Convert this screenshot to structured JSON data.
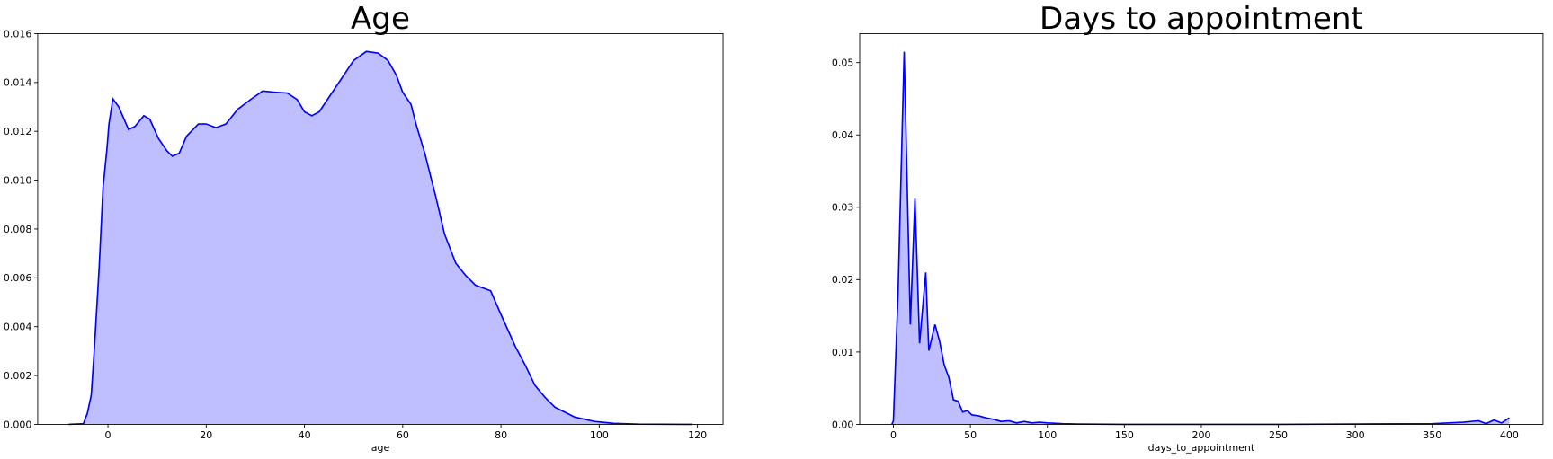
{
  "chart_data": [
    {
      "type": "area",
      "title": "Age",
      "xlabel": "age",
      "color": "#0000ff",
      "fill_opacity": 0.25,
      "x": [
        -8,
        -5,
        -4.2,
        -3.4,
        -2.8,
        -1.8,
        -1,
        -0.2,
        0.2,
        1,
        2.2,
        4.2,
        5.5,
        7.3,
        8.5,
        10.3,
        12,
        13.1,
        14.5,
        16,
        18.4,
        20,
        22,
        24,
        26.4,
        29,
        31.5,
        34,
        36.5,
        38.5,
        40,
        41.5,
        43,
        45,
        48,
        50,
        52.6,
        55,
        57,
        58.7,
        60,
        61.7,
        62.7,
        64.5,
        66.8,
        68.5,
        70.8,
        72.8,
        74.8,
        77.9,
        80,
        82.9,
        85,
        86.9,
        89,
        91,
        95,
        99,
        103,
        108,
        119
      ],
      "values": [
        0,
        3e-05,
        0.00045,
        0.0012,
        0.003,
        0.0064,
        0.0097,
        0.0113,
        0.0123,
        0.01333,
        0.013,
        0.01207,
        0.0122,
        0.01264,
        0.0125,
        0.0117,
        0.0112,
        0.01098,
        0.0111,
        0.0118,
        0.0123,
        0.0123,
        0.01215,
        0.0123,
        0.0129,
        0.0133,
        0.01365,
        0.0136,
        0.01357,
        0.0133,
        0.0128,
        0.01264,
        0.0128,
        0.0134,
        0.0143,
        0.0149,
        0.01527,
        0.0152,
        0.0149,
        0.0143,
        0.0136,
        0.0131,
        0.0123,
        0.0111,
        0.00927,
        0.0078,
        0.0066,
        0.0061,
        0.0057,
        0.00547,
        0.0045,
        0.0032,
        0.0024,
        0.0016,
        0.0011,
        0.0007,
        0.0003,
        0.00012,
        4e-05,
        1e-05,
        0
      ],
      "xlim": [
        -14.3,
        125.2
      ],
      "ylim": [
        0,
        0.016
      ],
      "xticks": [
        0,
        20,
        40,
        60,
        80,
        100,
        120
      ],
      "yticks": [
        {
          "value": 0,
          "label": "0.000"
        },
        {
          "value": 0.002,
          "label": "0.002"
        },
        {
          "value": 0.004,
          "label": "0.004"
        },
        {
          "value": 0.006,
          "label": "0.006"
        },
        {
          "value": 0.008,
          "label": "0.008"
        },
        {
          "value": 0.01,
          "label": "0.010"
        },
        {
          "value": 0.012,
          "label": "0.012"
        },
        {
          "value": 0.014,
          "label": "0.014"
        },
        {
          "value": 0.016,
          "label": "0.016"
        }
      ]
    },
    {
      "type": "area",
      "title": "Days to appointment",
      "xlabel": "days_to_appointment",
      "color": "#0000ff",
      "fill_opacity": 0.25,
      "x": [
        -1,
        0,
        3,
        7,
        11,
        14,
        17,
        21,
        23,
        27,
        30,
        33,
        36,
        39,
        42,
        45,
        48,
        51,
        55,
        60,
        65,
        70,
        75,
        80,
        85,
        90,
        95,
        100,
        110,
        120,
        150,
        200,
        250,
        300,
        350,
        370,
        380,
        385,
        390,
        395,
        400
      ],
      "values": [
        0,
        0.0005,
        0.018,
        0.0515,
        0.0138,
        0.0313,
        0.0112,
        0.021,
        0.0102,
        0.0138,
        0.0115,
        0.0082,
        0.0065,
        0.0034,
        0.0032,
        0.0017,
        0.0019,
        0.0013,
        0.0012,
        0.0009,
        0.0007,
        0.0004,
        0.0005,
        0.0002,
        0.0004,
        0.0002,
        0.0003,
        0.0002,
        0.0001,
        5e-05,
        0,
        0,
        0,
        5e-05,
        0.0001,
        0.0003,
        0.0005,
        0.0001,
        0.0006,
        0.0002,
        0.0009
      ],
      "xlim": [
        -21.9,
        421.9
      ],
      "ylim": [
        0,
        0.054
      ],
      "xticks": [
        0,
        50,
        100,
        150,
        200,
        250,
        300,
        350,
        400
      ],
      "yticks": [
        {
          "value": 0,
          "label": "0.00"
        },
        {
          "value": 0.01,
          "label": "0.01"
        },
        {
          "value": 0.02,
          "label": "0.02"
        },
        {
          "value": 0.03,
          "label": "0.03"
        },
        {
          "value": 0.04,
          "label": "0.04"
        },
        {
          "value": 0.05,
          "label": "0.05"
        }
      ]
    }
  ]
}
